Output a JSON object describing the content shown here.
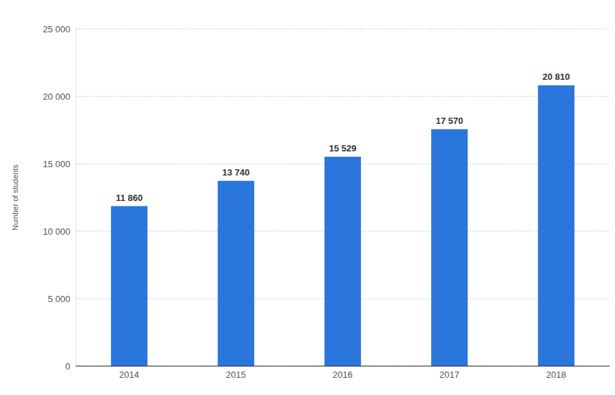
{
  "chart_data": {
    "type": "bar",
    "y_label": "Number of students",
    "categories": [
      "2014",
      "2015",
      "2016",
      "2017",
      "2018"
    ],
    "values": [
      11860,
      13740,
      15529,
      17570,
      20810
    ],
    "value_labels": [
      "11 860",
      "13 740",
      "15 529",
      "17 570",
      "20 810"
    ],
    "color": "#2a76dd",
    "ylim": [
      0,
      25000
    ],
    "yticks": [
      0,
      {
        "value": 5000,
        "label": "5 000"
      },
      {
        "value": 10000,
        "label": "10 000"
      },
      {
        "value": 15000,
        "label": "15 000"
      },
      {
        "value": 20000,
        "label": "20 000"
      },
      {
        "value": 25000,
        "label": "25 000"
      }
    ],
    "grid": true,
    "data_labels": true
  }
}
